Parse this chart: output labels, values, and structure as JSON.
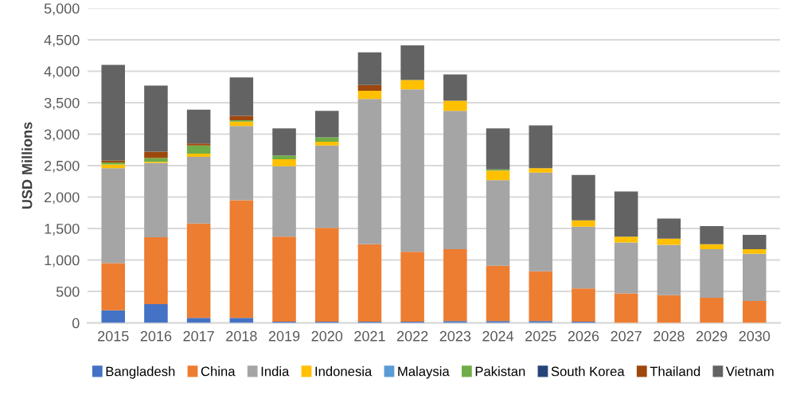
{
  "chart_data": {
    "type": "bar",
    "stacked": true,
    "ylabel": "USD Millions",
    "categories": [
      "2015",
      "2016",
      "2017",
      "2018",
      "2019",
      "2020",
      "2021",
      "2022",
      "2023",
      "2024",
      "2025",
      "2026",
      "2027",
      "2028",
      "2029",
      "2030"
    ],
    "series": [
      {
        "name": "Bangladesh",
        "color": "#4472c4",
        "values": [
          200,
          300,
          80,
          80,
          20,
          20,
          20,
          20,
          30,
          30,
          30,
          20,
          null,
          null,
          null,
          null
        ]
      },
      {
        "name": "China",
        "color": "#ed7d31",
        "values": [
          750,
          1060,
          1500,
          1870,
          1350,
          1490,
          1230,
          1110,
          1140,
          880,
          790,
          530,
          470,
          440,
          400,
          350
        ]
      },
      {
        "name": "India",
        "color": "#a5a5a5",
        "values": [
          1510,
          1180,
          1060,
          1180,
          1120,
          1310,
          2310,
          2580,
          2200,
          1360,
          1570,
          980,
          810,
          800,
          770,
          750
        ]
      },
      {
        "name": "Indonesia",
        "color": "#ffc000",
        "values": [
          60,
          20,
          50,
          70,
          110,
          60,
          130,
          150,
          160,
          150,
          70,
          100,
          90,
          100,
          80,
          70
        ]
      },
      {
        "name": "Malaysia",
        "color": "#5b9bd5",
        "values": [
          0,
          0,
          0,
          0,
          0,
          0,
          0,
          0,
          0,
          0,
          0,
          0,
          0,
          0,
          0,
          0
        ]
      },
      {
        "name": "Pakistan",
        "color": "#70ad47",
        "values": [
          30,
          60,
          130,
          20,
          60,
          70,
          0,
          0,
          0,
          20,
          0,
          0,
          0,
          0,
          0,
          0
        ]
      },
      {
        "name": "South Korea",
        "color": "#264478",
        "values": [
          0,
          0,
          0,
          0,
          0,
          0,
          0,
          0,
          0,
          0,
          0,
          0,
          0,
          0,
          0,
          0
        ]
      },
      {
        "name": "Thailand",
        "color": "#9e480e",
        "values": [
          30,
          100,
          30,
          70,
          0,
          0,
          90,
          0,
          0,
          0,
          0,
          0,
          0,
          0,
          0,
          0
        ]
      },
      {
        "name": "Vietnam",
        "color": "#636363",
        "values": [
          1520,
          1050,
          540,
          610,
          430,
          420,
          520,
          550,
          420,
          650,
          680,
          720,
          720,
          320,
          290,
          230
        ]
      }
    ],
    "ylim": [
      0,
      5000
    ],
    "yticks": [
      0,
      500,
      {
        "value": 1000,
        "label": "1,000"
      },
      {
        "value": 1500,
        "label": "1,500"
      },
      {
        "value": 2000,
        "label": "2,000"
      },
      {
        "value": 2500,
        "label": "2,500"
      },
      {
        "value": 3000,
        "label": "3,000"
      },
      {
        "value": 3500,
        "label": "3,500"
      },
      {
        "value": 4000,
        "label": "4,000"
      },
      {
        "value": 4500,
        "label": "4,500"
      },
      {
        "value": 5000,
        "label": "5,000"
      }
    ],
    "grid": "y",
    "legend": "bottom"
  }
}
